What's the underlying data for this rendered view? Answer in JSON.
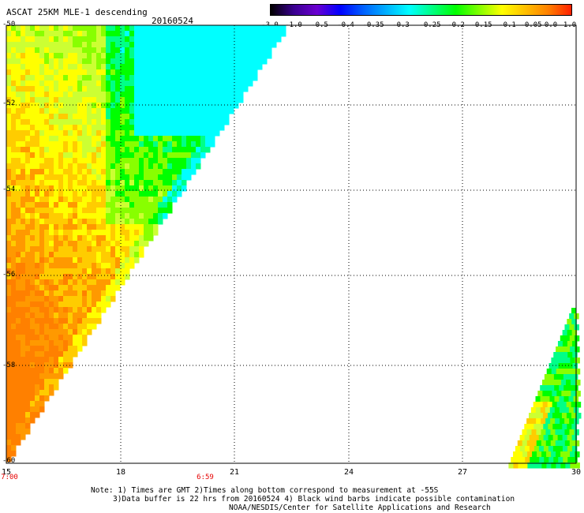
{
  "title": "ASCAT 25KM MLE-1 descending",
  "date": "20160524",
  "colorbar": {
    "labels": [
      "-3.0",
      "-1.0",
      "-0.5",
      "-0.4",
      "-0.35",
      "-0.3",
      "-0.25",
      "-0.2",
      "-0.15",
      "-0.1",
      "-0.05",
      "0.0",
      "1.0"
    ],
    "colors": [
      "#000000",
      "#3a0090",
      "#6a00d0",
      "#0000ff",
      "#0060ff",
      "#00b0ff",
      "#00ffff",
      "#00ff80",
      "#00ff00",
      "#80ff00",
      "#ffff00",
      "#ffc000",
      "#ff8000",
      "#ff2000"
    ]
  },
  "map": {
    "lon_range": [
      15,
      30
    ],
    "lat_range": [
      -50,
      -60
    ],
    "lat_labels": [
      "-50",
      "-52",
      "-54",
      "-56",
      "-58",
      "-60"
    ],
    "lon_labels": [
      "15",
      "18",
      "21",
      "24",
      "27",
      "30"
    ],
    "time_labels": [
      "7:00",
      "6:59"
    ]
  },
  "notes": {
    "line1": "Note: 1) Times are GMT 2)Times along bottom correspond to measurement at -55S",
    "line2": "3)Data buffer is 22 hrs from 20160524 4) Black wind barbs indicate possible contamination",
    "line3": "NOAA/NESDIS/Center for Satellite Applications and Research"
  }
}
